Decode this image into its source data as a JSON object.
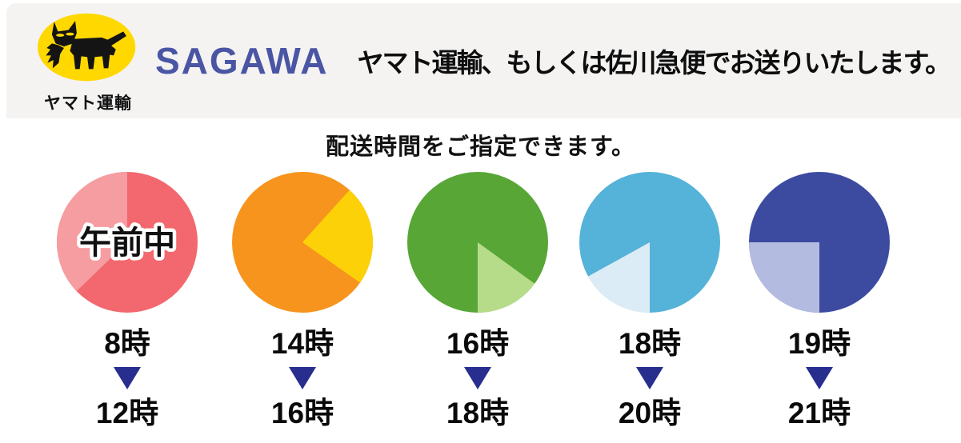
{
  "header": {
    "background": "#f4f3f2",
    "yamato_logo": {
      "label": "ヤマト運輸",
      "ellipse_color": "#ffd800",
      "cat_color": "#141414"
    },
    "sagawa_logo": {
      "label": "SAGAWA",
      "color": "#4a55a4"
    },
    "headline": "ヤマト運輸、もしくは佐川急便でお送りいたします。"
  },
  "subtitle": "配送時間をご指定できます。",
  "chart_data": {
    "type": "pie",
    "title": "配送時間をご指定できます。",
    "description": "Five clock-face pie graphics; the lighter slice marks each selectable delivery time window",
    "arrow_color": "#272e8e",
    "pies": [
      {
        "start_label": "8時",
        "end_label": "12時",
        "overlay_text": "午前中",
        "main_color": "#f2686e",
        "slice_color": "#f69da1",
        "slice_start_deg": 226,
        "slice_end_deg": 360
      },
      {
        "start_label": "14時",
        "end_label": "16時",
        "overlay_text": "",
        "main_color": "#f6941d",
        "slice_color": "#fdd108",
        "slice_start_deg": 42,
        "slice_end_deg": 125
      },
      {
        "start_label": "16時",
        "end_label": "18時",
        "overlay_text": "",
        "main_color": "#57a636",
        "slice_color": "#b6dc8a",
        "slice_start_deg": 126,
        "slice_end_deg": 180
      },
      {
        "start_label": "18時",
        "end_label": "20時",
        "overlay_text": "",
        "main_color": "#55b2d8",
        "slice_color": "#dcecf6",
        "slice_start_deg": 180,
        "slice_end_deg": 241
      },
      {
        "start_label": "19時",
        "end_label": "21時",
        "overlay_text": "",
        "main_color": "#3c4ba0",
        "slice_color": "#b3bce0",
        "slice_start_deg": 180,
        "slice_end_deg": 270
      }
    ]
  }
}
